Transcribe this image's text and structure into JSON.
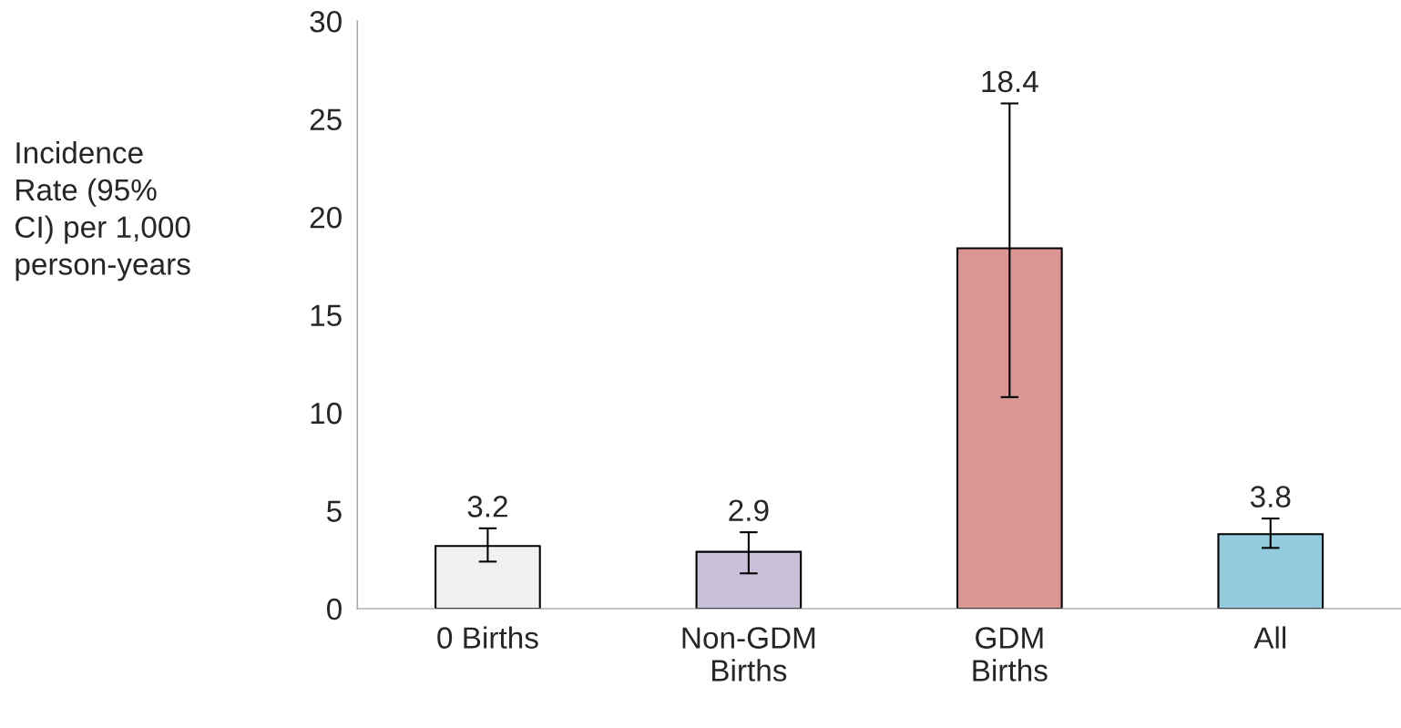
{
  "chart_data": {
    "type": "bar",
    "ylabel": "Incidence\nRate (95%\nCI) per 1,000\nperson-years",
    "categories": [
      "0 Births",
      "Non-GDM\nBirths",
      "GDM\nBirths",
      "All"
    ],
    "values": [
      3.2,
      2.9,
      18.4,
      3.8
    ],
    "colors": [
      "#f0f0f0",
      "#cbc0da",
      "#d99694",
      "#93cddd"
    ],
    "errors": [
      [
        2.4,
        4.1
      ],
      [
        1.8,
        3.9
      ],
      [
        10.8,
        25.8
      ],
      [
        3.1,
        4.6
      ]
    ],
    "value_labels": [
      "3.2",
      "2.9",
      null,
      "3.8"
    ],
    "annotations": [
      {
        "text": "18.4",
        "x": "GDM\nBirths",
        "y": 25.8
      }
    ],
    "ylim": [
      0,
      30
    ],
    "yticks": [
      0,
      5,
      10,
      15,
      20,
      25,
      30
    ],
    "grid": false,
    "legend": false
  }
}
